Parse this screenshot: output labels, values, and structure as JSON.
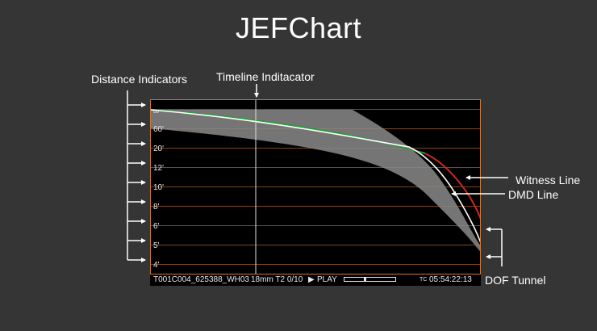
{
  "title": "JEFChart",
  "annotations": {
    "distance_indicators": "Distance Indicators",
    "timeline_indicator": "Timeline Inditacator",
    "witness_line": "Witness Line",
    "dmd_line": "DMD Line",
    "dof_tunnel": "DOF Tunnel"
  },
  "distance_labels": [
    "∞",
    "60'",
    "20'",
    "12'",
    "10'",
    "8'",
    "6'",
    "5'",
    "4'"
  ],
  "infobar": {
    "clip": "T001C004_625388_WH03",
    "lens": "18mm T2 0/10",
    "play_icon": "▶",
    "play": "PLAY",
    "timecode_prefix": "TC",
    "timecode": "05:54:22:13",
    "progress": 0.4
  },
  "colors": {
    "background": "#353535",
    "chart_border": "#c77936",
    "grid": "#7a4722",
    "tunnel": "#8a8a8a",
    "dmd_line": "#ffffff",
    "witness_line": "#cc2a1e",
    "green_line": "#2f9a3c"
  }
}
